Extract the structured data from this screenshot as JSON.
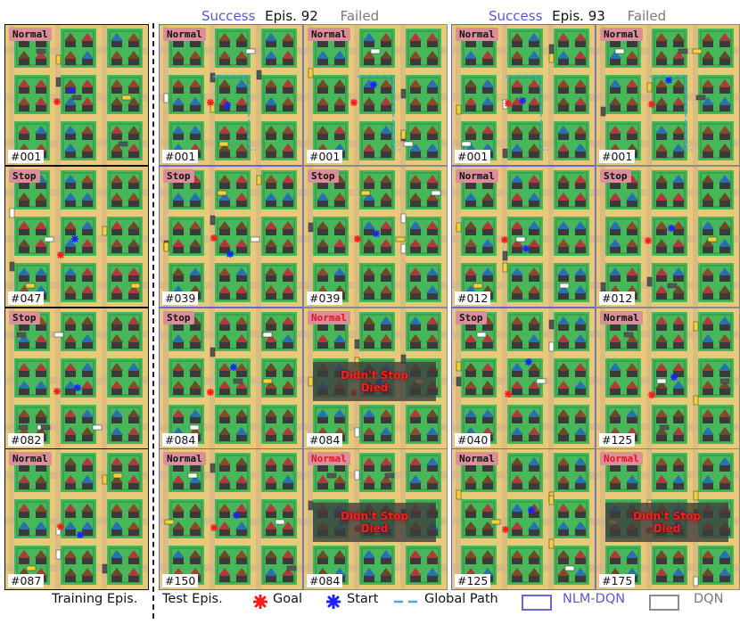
{
  "headers": {
    "group1": {
      "success": "Success",
      "episode": "Epis. 92",
      "failed": "Failed"
    },
    "group2": {
      "success": "Success",
      "episode": "Epis. 93",
      "failed": "Failed"
    }
  },
  "columns": [
    {
      "id": "training",
      "frame": "black"
    },
    {
      "id": "g1-success",
      "frame": "nlm-dqn"
    },
    {
      "id": "g1-failed",
      "frame": "dqn"
    },
    {
      "id": "g2-success",
      "frame": "nlm-dqn"
    },
    {
      "id": "g2-failed",
      "frame": "dqn"
    }
  ],
  "tiles": [
    [
      {
        "mode": "Normal",
        "episode": "#001"
      },
      {
        "mode": "Stop",
        "episode": "#047"
      },
      {
        "mode": "Stop",
        "episode": "#082"
      },
      {
        "mode": "Normal",
        "episode": "#087"
      }
    ],
    [
      {
        "mode": "Normal",
        "episode": "#001",
        "path": true
      },
      {
        "mode": "Stop",
        "episode": "#039"
      },
      {
        "mode": "Stop",
        "episode": "#084"
      },
      {
        "mode": "Normal",
        "episode": "#150"
      }
    ],
    [
      {
        "mode": "Normal",
        "episode": "#001",
        "path": true
      },
      {
        "mode": "Stop",
        "episode": "#039"
      },
      {
        "mode": "Normal",
        "mode_error": true,
        "episode": "#084",
        "overlay": {
          "line1": "Didn't Stop",
          "line2": "Died"
        }
      },
      {
        "mode": "Normal",
        "mode_error": true,
        "episode": "#084",
        "overlay": {
          "line1": "Didn't Stop",
          "line2": "Died"
        }
      }
    ],
    [
      {
        "mode": "Normal",
        "episode": "#001",
        "path": true
      },
      {
        "mode": "Normal",
        "episode": "#012"
      },
      {
        "mode": "Stop",
        "episode": "#040"
      },
      {
        "mode": "Normal",
        "episode": "#125"
      }
    ],
    [
      {
        "mode": "Normal",
        "episode": "#001",
        "path": true
      },
      {
        "mode": "Stop",
        "episode": "#012"
      },
      {
        "mode": "Normal",
        "episode": "#125"
      },
      {
        "mode": "Normal",
        "mode_error": true,
        "episode": "#175",
        "overlay": {
          "line1": "Didn't Stop",
          "line2": "Died"
        }
      }
    ]
  ],
  "legend": {
    "training": "Training Epis.",
    "test": "Test Epis.",
    "goal": "Goal",
    "start": "Start",
    "path": "Global Path",
    "nlm": "NLM-DQN",
    "dqn": "DQN"
  },
  "colors": {
    "nlm_frame": "#6a63e0",
    "dqn_frame": "#8a8a8a",
    "goal": "#ff1a1a",
    "start": "#1a22ff",
    "path": "#4aa8e8",
    "road": "#e8c97a",
    "grass": "#46b85a",
    "label_bg": "#d98e9a"
  }
}
